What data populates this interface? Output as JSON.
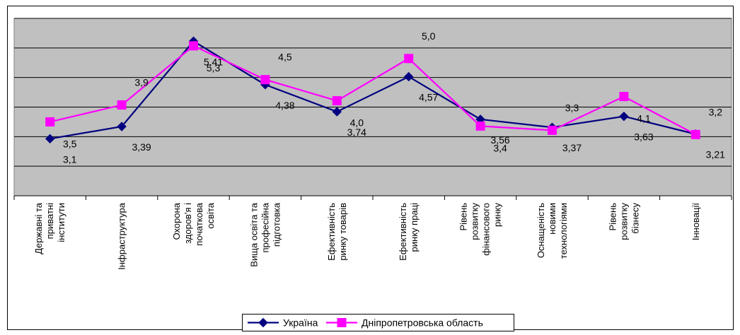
{
  "chart_data": {
    "type": "line",
    "title": "",
    "xlabel": "",
    "ylabel": "",
    "grid": true,
    "legend_position": "bottom",
    "categories": [
      [
        "Державні та",
        "приватні",
        "інститути"
      ],
      [
        "Інфраструктура"
      ],
      [
        "Охорона",
        "здоров'я і",
        "початкова",
        "освіта"
      ],
      [
        "Вища освіта та",
        "професійна",
        "підготовка"
      ],
      [
        "Ефективність",
        "ринку товарів"
      ],
      [
        "Ефективність",
        "ринку праці"
      ],
      [
        "Рівень",
        "розвитку",
        "фінансового",
        "ринку"
      ],
      [
        "Оснащеність",
        "новими",
        "технологіями"
      ],
      [
        "Рівень",
        "розвитку",
        "бізнесу"
      ],
      [
        "Інновації"
      ]
    ],
    "series": [
      {
        "name": "Україна",
        "color": "#000080",
        "marker": "diamond",
        "values": [
          3.1,
          3.39,
          5.41,
          4.38,
          3.74,
          4.57,
          3.56,
          3.37,
          3.63,
          3.21
        ],
        "labels": [
          "3,1",
          "3,39",
          "5,41",
          "4,38",
          "3,74",
          "4,57",
          "3,56",
          "3,37",
          "3,63",
          "3,21"
        ]
      },
      {
        "name": "Дніпропетровська область",
        "color": "#FF00FF",
        "marker": "square",
        "values": [
          3.5,
          3.9,
          5.3,
          4.5,
          4.0,
          5.0,
          3.4,
          3.3,
          4.1,
          3.2
        ],
        "labels": [
          "3,5",
          "3,9",
          "5,3",
          "4,5",
          "4,0",
          "5,0",
          "3,4",
          "3,3",
          "4,1",
          "3,2"
        ]
      }
    ],
    "colors": {
      "plot_background": "#C0C0C0",
      "gridline": "#000000"
    }
  }
}
